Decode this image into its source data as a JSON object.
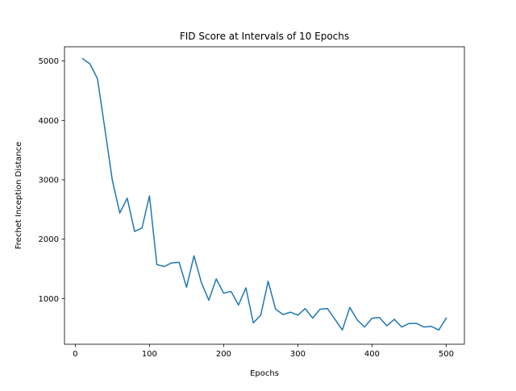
{
  "chart_data": {
    "type": "line",
    "title": "FID Score at Intervals of 10 Epochs",
    "xlabel": "Epochs",
    "ylabel": "Frechet Inception Distance",
    "xlim": [
      -14.5,
      524.5
    ],
    "ylim": [
      230,
      5240
    ],
    "xticks": [
      0,
      100,
      200,
      300,
      400,
      500
    ],
    "yticks": [
      1000,
      2000,
      3000,
      4000,
      5000
    ],
    "grid": false,
    "series": [
      {
        "color": "#1f77b4",
        "x": [
          10,
          20,
          30,
          40,
          50,
          60,
          70,
          80,
          90,
          100,
          110,
          120,
          130,
          140,
          150,
          160,
          170,
          180,
          190,
          200,
          210,
          220,
          230,
          240,
          250,
          260,
          270,
          280,
          290,
          300,
          310,
          320,
          330,
          340,
          350,
          360,
          370,
          380,
          390,
          400,
          410,
          420,
          430,
          440,
          450,
          460,
          470,
          480,
          490,
          500
        ],
        "y": [
          5040,
          4950,
          4700,
          3850,
          2990,
          2440,
          2690,
          2130,
          2190,
          2730,
          1570,
          1540,
          1600,
          1610,
          1190,
          1720,
          1270,
          970,
          1330,
          1090,
          1120,
          890,
          1180,
          590,
          720,
          1290,
          820,
          730,
          770,
          720,
          830,
          670,
          820,
          830,
          650,
          470,
          850,
          640,
          520,
          670,
          680,
          540,
          650,
          520,
          580,
          580,
          520,
          530,
          470,
          670
        ]
      }
    ]
  }
}
